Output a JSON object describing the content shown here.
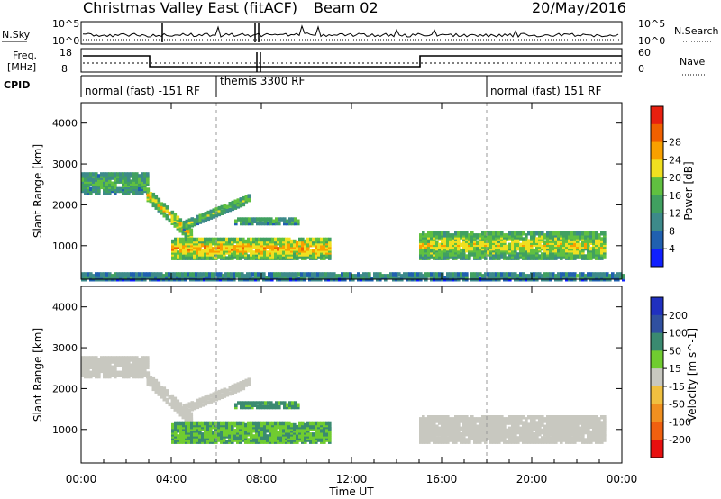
{
  "header": {
    "title": "Christmas Valley East (fitACF)",
    "beam": "Beam 02",
    "date": "20/May/2016"
  },
  "strips": {
    "nsky_label": "N.Sky",
    "nsky_ticks": [
      "10^5",
      "10^0"
    ],
    "nsearch_label": "N.Search",
    "nsearch_ticks": [
      "10^5",
      "10^0"
    ],
    "freq_label_1": "Freq.",
    "freq_label_2": "[MHz]",
    "freq_ticks": [
      "18",
      "8"
    ],
    "nave_label": "Nave",
    "nave_ticks": [
      "60",
      "0"
    ],
    "cpid_label": "CPID",
    "cpid_segments": [
      {
        "label": "normal (fast) -151 RF",
        "start_hour": 0,
        "end_hour": 6
      },
      {
        "label": "themis 3300 RF",
        "start_hour": 6,
        "end_hour": 18
      },
      {
        "label": "normal (fast) 151 RF",
        "start_hour": 18,
        "end_hour": 24
      }
    ]
  },
  "chart_data": [
    {
      "type": "heatmap",
      "panel": "power",
      "ylabel": "Slant Range [km]",
      "xlabel": "",
      "xlim": [
        0,
        24
      ],
      "ylim": [
        180,
        4500
      ],
      "yticks": [
        "1000",
        "2000",
        "3000",
        "4000"
      ],
      "colorbar": {
        "label": "Power [dB]",
        "ticks": [
          "4",
          "8",
          "12",
          "16",
          "20",
          "24",
          "28"
        ],
        "colors": [
          "#1020ff",
          "#2060b0",
          "#3d8a8a",
          "#40a060",
          "#60c040",
          "#f0e020",
          "#f8a000",
          "#f06000",
          "#e82010"
        ]
      },
      "features": [
        {
          "name": "early band",
          "start_hour": 0.0,
          "end_hour": 2.9,
          "range_km": [
            2300,
            2800
          ],
          "power_db": 14
        },
        {
          "name": "descending echo",
          "start_hour": 2.9,
          "end_hour": 4.8,
          "range_km": [
            1150,
            2300
          ],
          "power_db": 22
        },
        {
          "name": "rising echo",
          "start_hour": 4.5,
          "end_hour": 7.4,
          "range_km": [
            1500,
            2300
          ],
          "power_db": 16
        },
        {
          "name": "main band",
          "start_hour": 4.0,
          "end_hour": 11.0,
          "range_km": [
            700,
            1200
          ],
          "power_db": 24
        },
        {
          "name": "upper band",
          "start_hour": 6.8,
          "end_hour": 9.5,
          "range_km": [
            1550,
            1700
          ],
          "power_db": 14
        },
        {
          "name": "evening band",
          "start_hour": 15.0,
          "end_hour": 23.2,
          "range_km": [
            700,
            1350
          ],
          "power_db": 20
        },
        {
          "name": "ground scatter",
          "start_hour": 0.0,
          "end_hour": 24.0,
          "range_km": [
            180,
            350
          ],
          "power_db": 10
        }
      ]
    },
    {
      "type": "heatmap",
      "panel": "velocity",
      "ylabel": "Slant Range [km]",
      "xlabel": "Time UT",
      "xlim": [
        0,
        24
      ],
      "ylim": [
        180,
        4500
      ],
      "xticks": [
        "00:00",
        "04:00",
        "08:00",
        "12:00",
        "16:00",
        "20:00",
        "00:00"
      ],
      "yticks": [
        "1000",
        "2000",
        "3000",
        "4000"
      ],
      "colorbar": {
        "label": "Velocity [m s^-1]",
        "ticks": [
          "200",
          "100",
          "50",
          "15",
          "-15",
          "-50",
          "-100",
          "-200"
        ],
        "colors": [
          "#2030c0",
          "#3050a0",
          "#3a8a70",
          "#70cc30",
          "#c8c8c0",
          "#f0c040",
          "#f09020",
          "#f06010",
          "#e81010"
        ]
      },
      "features": [
        {
          "name": "early band",
          "start_hour": 0.0,
          "end_hour": 2.9,
          "range_km": [
            2300,
            2800
          ],
          "velocity": 0
        },
        {
          "name": "descending echo",
          "start_hour": 2.9,
          "end_hour": 4.8,
          "range_km": [
            1150,
            2300
          ],
          "velocity": 0
        },
        {
          "name": "rising echo",
          "start_hour": 4.5,
          "end_hour": 7.4,
          "range_km": [
            1500,
            2300
          ],
          "velocity": 0
        },
        {
          "name": "main band",
          "start_hour": 4.0,
          "end_hour": 11.0,
          "range_km": [
            700,
            1200
          ],
          "velocity": 30
        },
        {
          "name": "upper band",
          "start_hour": 6.8,
          "end_hour": 9.5,
          "range_km": [
            1550,
            1700
          ],
          "velocity": 40
        },
        {
          "name": "evening band",
          "start_hour": 15.0,
          "end_hour": 23.2,
          "range_km": [
            700,
            1350
          ],
          "velocity": 0
        }
      ]
    }
  ]
}
